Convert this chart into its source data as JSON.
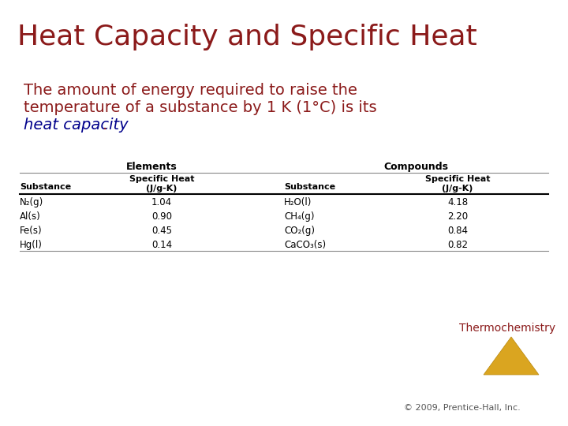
{
  "title": "Heat Capacity and Specific Heat",
  "title_color": "#8B1A1A",
  "body_text_color": "#8B1A1A",
  "highlight_color": "#00008B",
  "table_group1_header": "Elements",
  "table_group2_header": "Compounds",
  "elements": [
    [
      "N₂(g)",
      "1.04"
    ],
    [
      "Al(s)",
      "0.90"
    ],
    [
      "Fe(s)",
      "0.45"
    ],
    [
      "Hg(l)",
      "0.14"
    ]
  ],
  "compounds": [
    [
      "H₂O(l)",
      "4.18"
    ],
    [
      "CH₄(g)",
      "2.20"
    ],
    [
      "CO₂(g)",
      "0.84"
    ],
    [
      "CaCO₃(s)",
      "0.82"
    ]
  ],
  "watermark": "Thermochemistry",
  "watermark_color": "#8B1A1A",
  "copyright": "© 2009, Prentice-Hall, Inc.",
  "copyright_color": "#555555",
  "background_color": "#FFFFFF",
  "triangle_color": "#DAA520",
  "triangle_edge_color": "#B8860B"
}
